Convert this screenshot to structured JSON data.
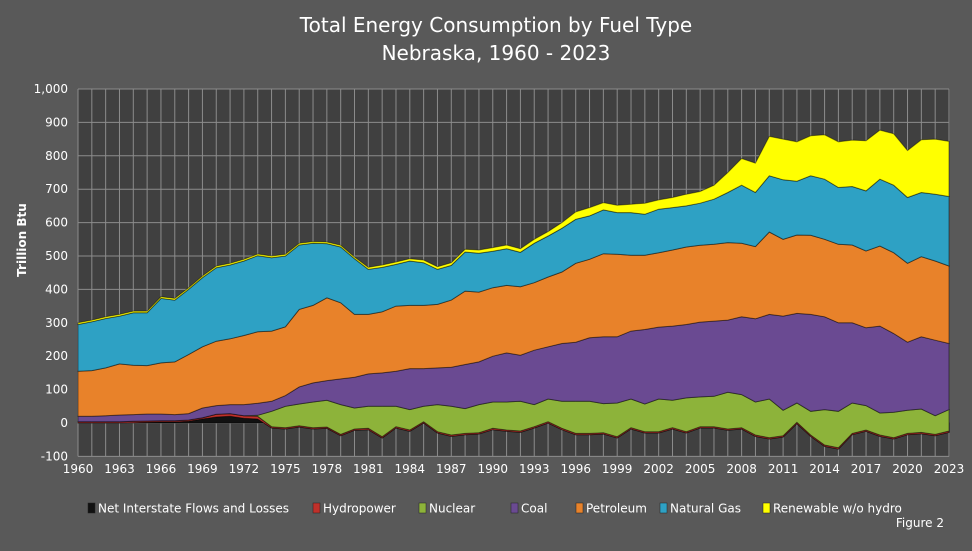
{
  "chart_data": {
    "type": "area",
    "stacked": true,
    "title": "Total Energy Consumption by Fuel Type",
    "subtitle": "Nebraska, 1960 - 2023",
    "xlabel": "",
    "ylabel": "Trillion Btu",
    "ylim": [
      -100,
      1000
    ],
    "grid": true,
    "legend_position": "bottom",
    "footnote": "Figure 2",
    "y_ticks": [
      "-100",
      "0",
      "100",
      "200",
      "300",
      "400",
      "500",
      "600",
      "700",
      "800",
      "900",
      "1,000"
    ],
    "x_ticks": [
      "1960",
      "1963",
      "1966",
      "1969",
      "1972",
      "1975",
      "1978",
      "1981",
      "1984",
      "1987",
      "1990",
      "1993",
      "1996",
      "1999",
      "2002",
      "2005",
      "2008",
      "2011",
      "2014",
      "2017",
      "2020",
      "2023"
    ],
    "x": [
      1960,
      1961,
      1962,
      1963,
      1964,
      1965,
      1966,
      1967,
      1968,
      1969,
      1970,
      1971,
      1972,
      1973,
      1974,
      1975,
      1976,
      1977,
      1978,
      1979,
      1980,
      1981,
      1982,
      1983,
      1984,
      1985,
      1986,
      1987,
      1988,
      1989,
      1990,
      1991,
      1992,
      1993,
      1994,
      1995,
      1996,
      1997,
      1998,
      1999,
      2000,
      2001,
      2002,
      2003,
      2004,
      2005,
      2006,
      2007,
      2008,
      2009,
      2010,
      2011,
      2012,
      2013,
      2014,
      2015,
      2016,
      2017,
      2018,
      2019,
      2020,
      2021,
      2022,
      2023
    ],
    "series": [
      {
        "name": "Net Interstate Flows and Losses",
        "color": "#111111",
        "values": [
          0,
          0,
          0,
          0,
          1,
          2,
          3,
          3,
          5,
          12,
          18,
          20,
          14,
          12,
          -15,
          -18,
          -12,
          -18,
          -16,
          -38,
          -22,
          -20,
          -45,
          -15,
          -25,
          0,
          -30,
          -40,
          -35,
          -33,
          -20,
          -25,
          -28,
          -15,
          0,
          -20,
          -35,
          -35,
          -33,
          -45,
          -18,
          -30,
          -30,
          -18,
          -30,
          -15,
          -15,
          -22,
          -18,
          -40,
          -48,
          -42,
          -2,
          -40,
          -70,
          -78,
          -35,
          -25,
          -40,
          -48,
          -35,
          -32,
          -38,
          -28
        ]
      },
      {
        "name": "Hydropower",
        "color": "#c0302a",
        "values": [
          4,
          4,
          4,
          4,
          4,
          4,
          4,
          4,
          4,
          4,
          8,
          8,
          8,
          8,
          4,
          4,
          4,
          4,
          4,
          4,
          4,
          4,
          4,
          4,
          4,
          4,
          4,
          4,
          4,
          4,
          4,
          4,
          4,
          4,
          4,
          4,
          4,
          4,
          4,
          4,
          4,
          4,
          4,
          4,
          4,
          4,
          4,
          4,
          4,
          4,
          4,
          4,
          4,
          4,
          4,
          4,
          4,
          4,
          4,
          4,
          4,
          4,
          4,
          4
        ]
      },
      {
        "name": "Nuclear",
        "color": "#8db33a",
        "values": [
          0,
          0,
          0,
          0,
          0,
          0,
          0,
          0,
          0,
          0,
          0,
          0,
          0,
          3,
          46,
          64,
          65,
          77,
          80,
          89,
          63,
          66,
          91,
          61,
          61,
          46,
          81,
          86,
          74,
          84,
          79,
          84,
          89,
          66,
          68,
          81,
          96,
          96,
          87,
          101,
          86,
          83,
          98,
          82,
          101,
          89,
          91,
          110,
          99,
          99,
          116,
          76,
          58,
          71,
          106,
          109,
          91,
          73,
          66,
          76,
          69,
          70,
          56,
          64
        ]
      },
      {
        "name": "Coal",
        "color": "#6a4a92",
        "values": [
          16,
          16,
          18,
          20,
          20,
          21,
          20,
          18,
          19,
          29,
          26,
          27,
          33,
          36,
          30,
          32,
          51,
          57,
          59,
          77,
          92,
          97,
          100,
          105,
          123,
          113,
          110,
          117,
          132,
          128,
          137,
          147,
          138,
          163,
          156,
          173,
          177,
          190,
          200,
          198,
          203,
          223,
          215,
          222,
          220,
          224,
          225,
          216,
          233,
          249,
          253,
          282,
          268,
          290,
          278,
          265,
          240,
          233,
          260,
          236,
          204,
          216,
          226,
          198
        ]
      },
      {
        "name": "Petroleum",
        "color": "#e8822a",
        "values": [
          135,
          137,
          143,
          153,
          148,
          145,
          153,
          158,
          177,
          183,
          193,
          197,
          207,
          214,
          210,
          206,
          232,
          232,
          248,
          228,
          188,
          178,
          183,
          195,
          189,
          189,
          190,
          201,
          220,
          209,
          205,
          202,
          205,
          202,
          209,
          214,
          236,
          235,
          249,
          247,
          227,
          222,
          223,
          228,
          232,
          230,
          230,
          232,
          220,
          216,
          247,
          230,
          235,
          237,
          232,
          235,
          233,
          230,
          240,
          242,
          236,
          240,
          237,
          232
        ]
      },
      {
        "name": "Natural Gas",
        "color": "#2ea1c4",
        "values": [
          140,
          146,
          148,
          143,
          157,
          158,
          193,
          185,
          195,
          207,
          220,
          221,
          223,
          228,
          220,
          212,
          193,
          186,
          162,
          167,
          167,
          135,
          133,
          125,
          133,
          128,
          105,
          104,
          117,
          116,
          109,
          110,
          103,
          118,
          123,
          131,
          132,
          130,
          131,
          125,
          128,
          123,
          130,
          127,
          123,
          126,
          135,
          150,
          174,
          162,
          168,
          178,
          161,
          178,
          180,
          170,
          175,
          180,
          200,
          202,
          197,
          192,
          200,
          208
        ]
      },
      {
        "name": "Renewable w/o hydro",
        "color": "#ffff00",
        "values": [
          5,
          5,
          5,
          5,
          5,
          5,
          5,
          5,
          5,
          5,
          5,
          5,
          5,
          5,
          5,
          5,
          5,
          5,
          5,
          5,
          5,
          6,
          7,
          7,
          7,
          8,
          8,
          8,
          8,
          10,
          11,
          11,
          11,
          12,
          13,
          17,
          22,
          25,
          22,
          22,
          25,
          33,
          28,
          30,
          35,
          35,
          42,
          60,
          80,
          88,
          118,
          122,
          118,
          120,
          133,
          137,
          139,
          150,
          147,
          154,
          141,
          158,
          165,
          165
        ]
      }
    ]
  }
}
